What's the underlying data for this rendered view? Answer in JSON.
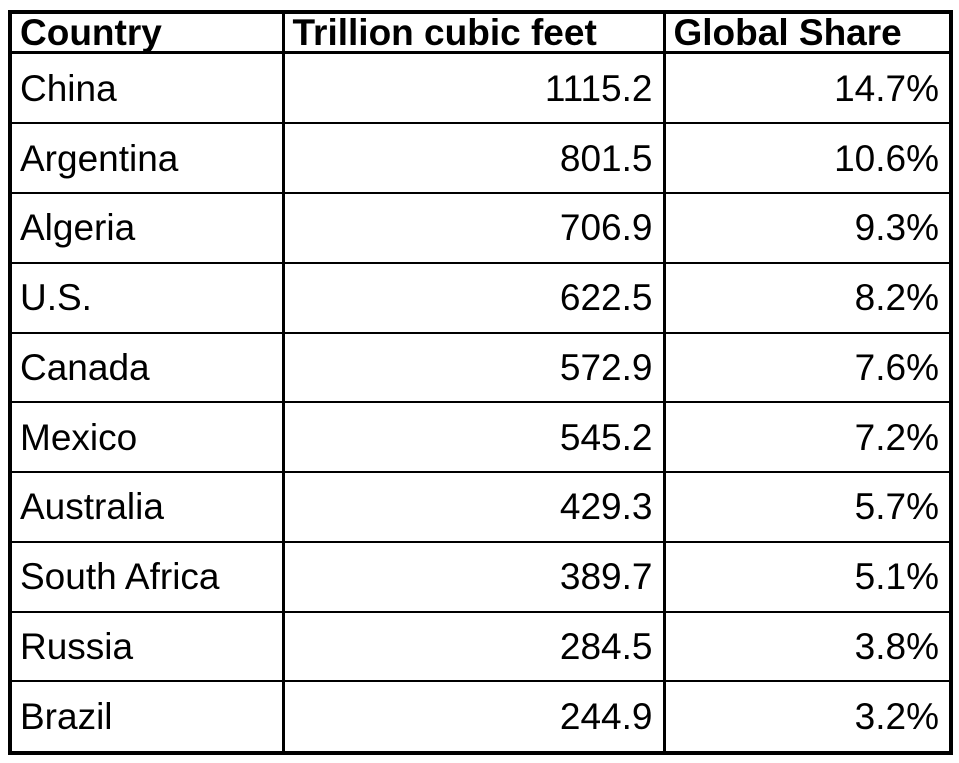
{
  "table": {
    "columns": [
      "Country",
      "Trillion cubic feet",
      "Global Share"
    ],
    "rows": [
      {
        "country": "China",
        "value": "1115.2",
        "share": "14.7%"
      },
      {
        "country": "Argentina",
        "value": "801.5",
        "share": "10.6%"
      },
      {
        "country": "Algeria",
        "value": "706.9",
        "share": "9.3%"
      },
      {
        "country": "U.S.",
        "value": "622.5",
        "share": "8.2%"
      },
      {
        "country": "Canada",
        "value": "572.9",
        "share": "7.6%"
      },
      {
        "country": "Mexico",
        "value": "545.2",
        "share": "7.2%"
      },
      {
        "country": "Australia",
        "value": "429.3",
        "share": "5.7%"
      },
      {
        "country": "South Africa",
        "value": "389.7",
        "share": "5.1%"
      },
      {
        "country": "Russia",
        "value": "284.5",
        "share": "3.8%"
      },
      {
        "country": "Brazil",
        "value": "244.9",
        "share": "3.2%"
      }
    ]
  },
  "colors": {
    "border": "#000000",
    "text": "#000000",
    "background": "#ffffff"
  },
  "chart_data": {
    "type": "table",
    "title": "",
    "columns": [
      "Country",
      "Trillion cubic feet",
      "Global Share"
    ],
    "categories": [
      "China",
      "Argentina",
      "Algeria",
      "U.S.",
      "Canada",
      "Mexico",
      "Australia",
      "South Africa",
      "Russia",
      "Brazil"
    ],
    "series": [
      {
        "name": "Trillion cubic feet",
        "values": [
          1115.2,
          801.5,
          706.9,
          622.5,
          572.9,
          545.2,
          429.3,
          389.7,
          284.5,
          244.9
        ]
      },
      {
        "name": "Global Share (%)",
        "values": [
          14.7,
          10.6,
          9.3,
          8.2,
          7.6,
          7.2,
          5.7,
          5.1,
          3.8,
          3.2
        ]
      }
    ]
  }
}
